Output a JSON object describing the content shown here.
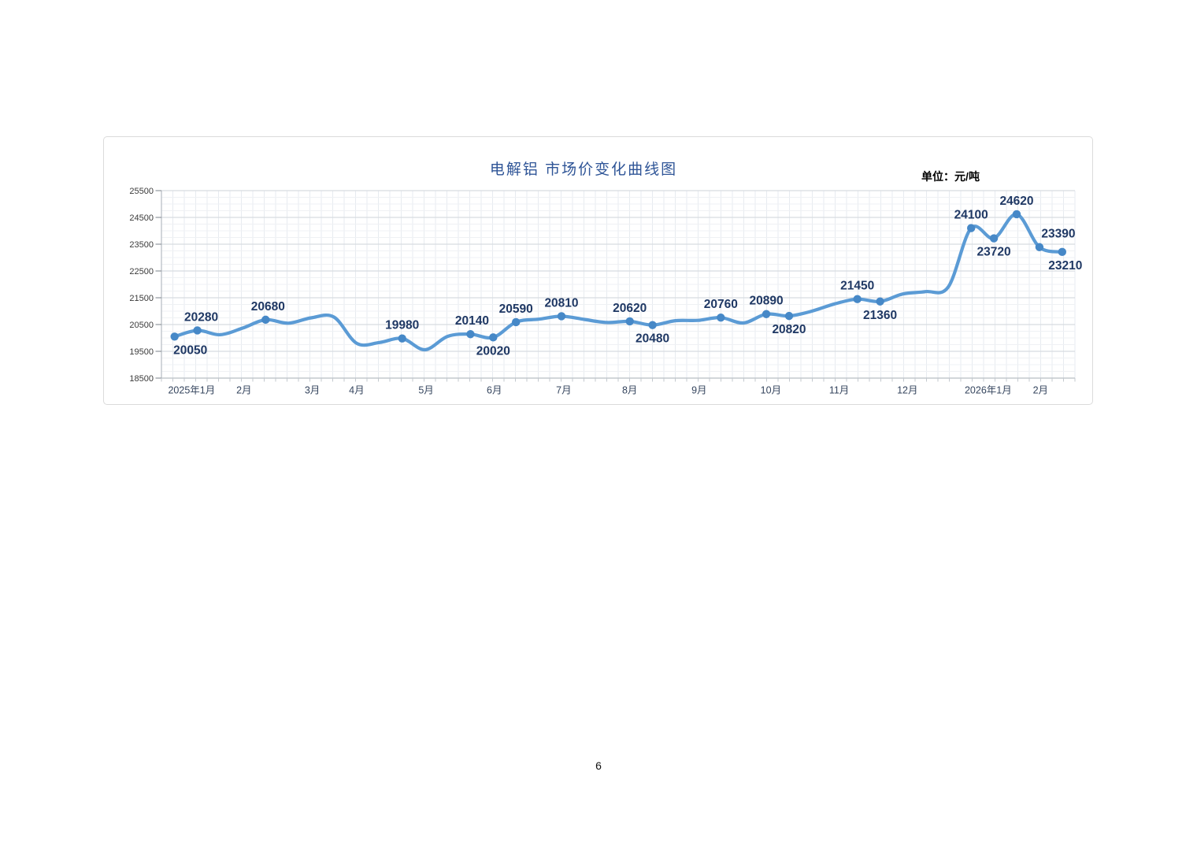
{
  "page": {
    "number": "6"
  },
  "chart_data": {
    "type": "line",
    "title": "电解铝 市场价变化曲线图",
    "unit_label": "单位：元/吨",
    "unit": "元/吨",
    "ylim": [
      18500,
      25500
    ],
    "ytick_interval": 1000,
    "yticks": [
      "18500",
      "19500",
      "20500",
      "21500",
      "22500",
      "23500",
      "24500",
      "25500"
    ],
    "grid": true,
    "legend_position": "none",
    "colors": {
      "line": "#5B9BD5",
      "marker": "#4688C7",
      "data_label": "#1F3864",
      "title": "#2F5597",
      "axis": "#C3C8CE",
      "grid_major": "#D8DCE0",
      "grid_minor": "#EFF1F4",
      "grid_vertical": "#E7EBF0"
    },
    "x_months": [
      {
        "label": "2025年1月",
        "pos": 0.75
      },
      {
        "label": "2月",
        "pos": 3.05
      },
      {
        "label": "3月",
        "pos": 6.05
      },
      {
        "label": "4月",
        "pos": 8.0
      },
      {
        "label": "5月",
        "pos": 11.05
      },
      {
        "label": "6月",
        "pos": 14.05
      },
      {
        "label": "7月",
        "pos": 17.1
      },
      {
        "label": "8月",
        "pos": 20.0
      },
      {
        "label": "9月",
        "pos": 23.05
      },
      {
        "label": "10月",
        "pos": 26.2
      },
      {
        "label": "11月",
        "pos": 29.2
      },
      {
        "label": "12月",
        "pos": 32.2
      },
      {
        "label": "2026年1月",
        "pos": 35.75
      },
      {
        "label": "2月",
        "pos": 38.05
      }
    ],
    "points": [
      {
        "v": 20050,
        "label": "20050",
        "pos": "below",
        "dx": 20
      },
      {
        "v": 20280,
        "label": "20280",
        "pos": "above",
        "dx": 5
      },
      {
        "v": 20120
      },
      {
        "v": 20370
      },
      {
        "v": 20680,
        "label": "20680",
        "pos": "above",
        "dx": 3
      },
      {
        "v": 20550
      },
      {
        "v": 20750
      },
      {
        "v": 20780
      },
      {
        "v": 19800
      },
      {
        "v": 19830
      },
      {
        "v": 19980,
        "label": "19980",
        "pos": "above",
        "dx": 0
      },
      {
        "v": 19560
      },
      {
        "v": 20060
      },
      {
        "v": 20140,
        "label": "20140",
        "pos": "above",
        "dx": 2
      },
      {
        "v": 20020,
        "label": "20020",
        "pos": "below",
        "dx": 0
      },
      {
        "v": 20590,
        "label": "20590",
        "pos": "above",
        "dx": 0
      },
      {
        "v": 20700
      },
      {
        "v": 20810,
        "label": "20810",
        "pos": "above",
        "dx": 0
      },
      {
        "v": 20690
      },
      {
        "v": 20575
      },
      {
        "v": 20620,
        "label": "20620",
        "pos": "above",
        "dx": 0
      },
      {
        "v": 20480,
        "label": "20480",
        "pos": "below",
        "dx": 0
      },
      {
        "v": 20645
      },
      {
        "v": 20655
      },
      {
        "v": 20760,
        "label": "20760",
        "pos": "above",
        "dx": 0
      },
      {
        "v": 20560
      },
      {
        "v": 20890,
        "label": "20890",
        "pos": "above",
        "dx": 0
      },
      {
        "v": 20820,
        "label": "20820",
        "pos": "below",
        "dx": 0
      },
      {
        "v": 21000
      },
      {
        "v": 21270
      },
      {
        "v": 21450,
        "label": "21450",
        "pos": "above",
        "dx": 0
      },
      {
        "v": 21360,
        "label": "21360",
        "pos": "below",
        "dx": 0
      },
      {
        "v": 21640
      },
      {
        "v": 21730
      },
      {
        "v": 21910
      },
      {
        "v": 24100,
        "label": "24100",
        "pos": "above",
        "dx": 0
      },
      {
        "v": 23720,
        "label": "23720",
        "pos": "below",
        "dx": 0
      },
      {
        "v": 24620,
        "label": "24620",
        "pos": "above",
        "dx": 0
      },
      {
        "v": 23390,
        "label": "23390",
        "pos": "above",
        "dx": 24
      },
      {
        "v": 23210,
        "label": "23210",
        "pos": "below",
        "dx": 4
      }
    ]
  }
}
